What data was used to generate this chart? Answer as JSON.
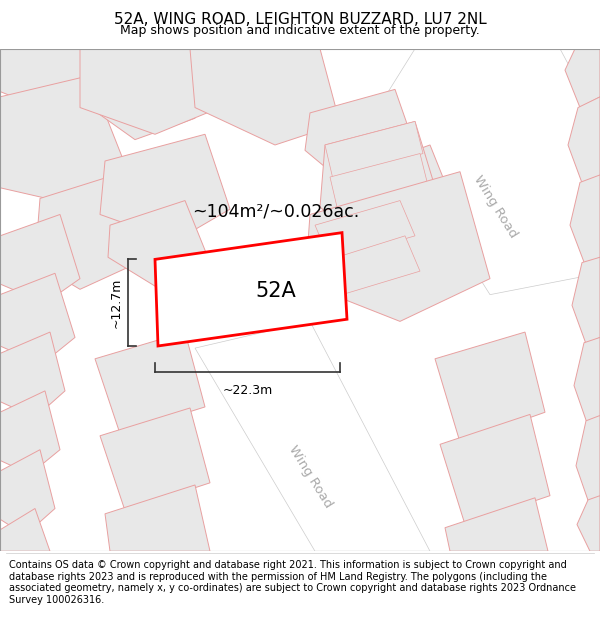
{
  "title": "52A, WING ROAD, LEIGHTON BUZZARD, LU7 2NL",
  "subtitle": "Map shows position and indicative extent of the property.",
  "footer": "Contains OS data © Crown copyright and database right 2021. This information is subject to Crown copyright and database rights 2023 and is reproduced with the permission of HM Land Registry. The polygons (including the associated geometry, namely x, y co-ordinates) are subject to Crown copyright and database rights 2023 Ordnance Survey 100026316.",
  "map_bg": "#f2f2f2",
  "building_fill": "#e8e8e8",
  "building_edge": "#e8a0a0",
  "road_fill": "#ffffff",
  "highlight_fill": "#ffffff",
  "highlight_edge": "#ff0000",
  "highlight_lw": 2.0,
  "label_52A": "52A",
  "area_label": "~104m²/~0.026ac.",
  "dim_width": "~22.3m",
  "dim_height": "~12.7m",
  "road_label_1": "Wing Road",
  "road_label_2": "Wing Road",
  "title_fontsize": 11,
  "subtitle_fontsize": 9,
  "footer_fontsize": 7,
  "map_border_color": "#cccccc",
  "dim_color": "#333333",
  "road_label_color": "#aaaaaa"
}
